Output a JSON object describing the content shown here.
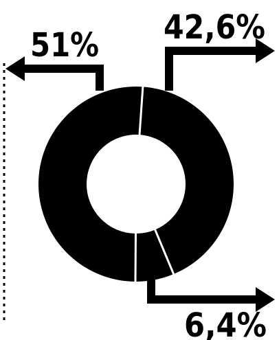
{
  "chart_data": {
    "type": "pie",
    "donut": true,
    "legend": "none",
    "slices": [
      {
        "label": "51%",
        "value": 51
      },
      {
        "label": "42,6%",
        "value": 42.6
      },
      {
        "label": "6,4%",
        "value": 6.4
      }
    ]
  },
  "colors": {
    "slice": "#000000",
    "separator": "#ffffff",
    "background": "#ffffff",
    "text": "#000000"
  }
}
